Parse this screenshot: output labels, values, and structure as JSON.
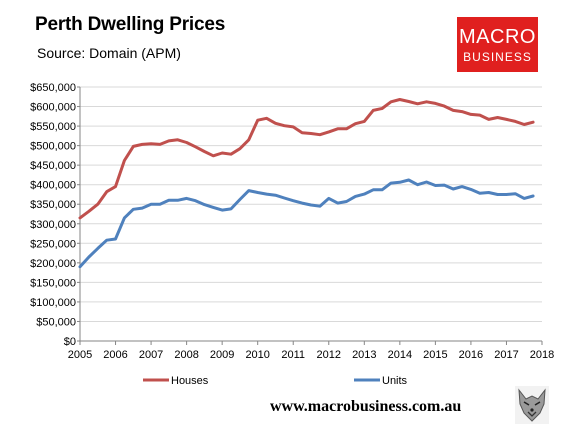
{
  "header": {
    "title": "Perth Dwelling Prices",
    "subtitle": "Source: Domain (APM)"
  },
  "logo": {
    "line1": "MACRO",
    "line2": "BUSINESS",
    "color": "#e0201f"
  },
  "footer": {
    "website": "www.macrobusiness.com.au",
    "mascot_icon": "wolf-head-icon"
  },
  "chart_data": {
    "type": "line",
    "title": "Perth Dwelling Prices",
    "subtitle": "Source: Domain (APM)",
    "xlabel": "",
    "ylabel": "",
    "xlim": [
      2005,
      2018
    ],
    "ylim": [
      0,
      650000
    ],
    "x_ticks": [
      "2005",
      "2006",
      "2007",
      "2008",
      "2009",
      "2010",
      "2011",
      "2012",
      "2013",
      "2014",
      "2015",
      "2016",
      "2017",
      "2018"
    ],
    "y_ticks": [
      "$0",
      "$50,000",
      "$100,000",
      "$150,000",
      "$200,000",
      "$250,000",
      "$300,000",
      "$350,000",
      "$400,000",
      "$450,000",
      "$500,000",
      "$550,000",
      "$600,000",
      "$650,000"
    ],
    "y_tick_values": [
      0,
      50000,
      100000,
      150000,
      200000,
      250000,
      300000,
      350000,
      400000,
      450000,
      500000,
      550000,
      600000,
      650000
    ],
    "grid": true,
    "legend": "bottom",
    "series": [
      {
        "name": "Houses",
        "color": "#c0504d",
        "points": [
          [
            2005.0,
            315000
          ],
          [
            2005.25,
            332000
          ],
          [
            2005.5,
            350000
          ],
          [
            2005.75,
            382000
          ],
          [
            2006.0,
            395000
          ],
          [
            2006.25,
            462000
          ],
          [
            2006.5,
            498000
          ],
          [
            2006.75,
            503000
          ],
          [
            2007.0,
            505000
          ],
          [
            2007.25,
            503000
          ],
          [
            2007.5,
            512000
          ],
          [
            2007.75,
            515000
          ],
          [
            2008.0,
            508000
          ],
          [
            2008.25,
            497000
          ],
          [
            2008.5,
            485000
          ],
          [
            2008.75,
            474000
          ],
          [
            2009.0,
            481000
          ],
          [
            2009.25,
            478000
          ],
          [
            2009.5,
            492000
          ],
          [
            2009.75,
            515000
          ],
          [
            2010.0,
            565000
          ],
          [
            2010.25,
            570000
          ],
          [
            2010.5,
            557000
          ],
          [
            2010.75,
            551000
          ],
          [
            2011.0,
            548000
          ],
          [
            2011.25,
            533000
          ],
          [
            2011.5,
            531000
          ],
          [
            2011.75,
            528000
          ],
          [
            2012.0,
            535000
          ],
          [
            2012.25,
            543000
          ],
          [
            2012.5,
            543000
          ],
          [
            2012.75,
            556000
          ],
          [
            2013.0,
            562000
          ],
          [
            2013.25,
            590000
          ],
          [
            2013.5,
            595000
          ],
          [
            2013.75,
            612000
          ],
          [
            2014.0,
            618000
          ],
          [
            2014.25,
            613000
          ],
          [
            2014.5,
            607000
          ],
          [
            2014.75,
            612000
          ],
          [
            2015.0,
            608000
          ],
          [
            2015.25,
            601000
          ],
          [
            2015.5,
            590000
          ],
          [
            2015.75,
            587000
          ],
          [
            2016.0,
            580000
          ],
          [
            2016.25,
            578000
          ],
          [
            2016.5,
            567000
          ],
          [
            2016.75,
            572000
          ],
          [
            2017.0,
            567000
          ],
          [
            2017.25,
            562000
          ],
          [
            2017.5,
            554000
          ],
          [
            2017.75,
            560000
          ]
        ]
      },
      {
        "name": "Units",
        "color": "#4f81bd",
        "points": [
          [
            2005.0,
            190000
          ],
          [
            2005.25,
            215000
          ],
          [
            2005.5,
            237000
          ],
          [
            2005.75,
            258000
          ],
          [
            2006.0,
            261000
          ],
          [
            2006.25,
            315000
          ],
          [
            2006.5,
            337000
          ],
          [
            2006.75,
            340000
          ],
          [
            2007.0,
            350000
          ],
          [
            2007.25,
            350000
          ],
          [
            2007.5,
            360000
          ],
          [
            2007.75,
            360000
          ],
          [
            2008.0,
            365000
          ],
          [
            2008.25,
            359000
          ],
          [
            2008.5,
            349000
          ],
          [
            2008.75,
            342000
          ],
          [
            2009.0,
            335000
          ],
          [
            2009.25,
            338000
          ],
          [
            2009.5,
            362000
          ],
          [
            2009.75,
            385000
          ],
          [
            2010.0,
            380000
          ],
          [
            2010.25,
            376000
          ],
          [
            2010.5,
            373000
          ],
          [
            2010.75,
            366000
          ],
          [
            2011.0,
            359000
          ],
          [
            2011.25,
            353000
          ],
          [
            2011.5,
            348000
          ],
          [
            2011.75,
            345000
          ],
          [
            2012.0,
            365000
          ],
          [
            2012.25,
            353000
          ],
          [
            2012.5,
            357000
          ],
          [
            2012.75,
            370000
          ],
          [
            2013.0,
            376000
          ],
          [
            2013.25,
            387000
          ],
          [
            2013.5,
            387000
          ],
          [
            2013.75,
            404000
          ],
          [
            2014.0,
            406000
          ],
          [
            2014.25,
            412000
          ],
          [
            2014.5,
            400000
          ],
          [
            2014.75,
            407000
          ],
          [
            2015.0,
            398000
          ],
          [
            2015.25,
            399000
          ],
          [
            2015.5,
            389000
          ],
          [
            2015.75,
            395000
          ],
          [
            2016.0,
            388000
          ],
          [
            2016.25,
            378000
          ],
          [
            2016.5,
            380000
          ],
          [
            2016.75,
            375000
          ],
          [
            2017.0,
            375000
          ],
          [
            2017.25,
            377000
          ],
          [
            2017.5,
            365000
          ],
          [
            2017.75,
            371000
          ]
        ]
      }
    ]
  }
}
